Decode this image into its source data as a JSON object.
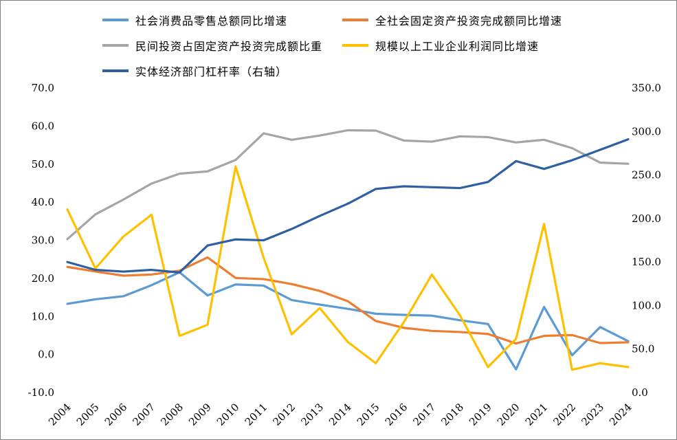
{
  "chart_data": {
    "type": "line",
    "title": "",
    "legend_position": "top",
    "grid": false,
    "x": [
      2004,
      2005,
      2006,
      2007,
      2008,
      2009,
      2010,
      2011,
      2012,
      2013,
      2014,
      2015,
      2016,
      2017,
      2018,
      2019,
      2020,
      2021,
      2022,
      2023,
      2024
    ],
    "left_axis": {
      "min": -10,
      "max": 70,
      "ticks": [
        70,
        60,
        50,
        40,
        30,
        20,
        10,
        0,
        -10
      ],
      "decimals": 1
    },
    "right_axis": {
      "min": 0,
      "max": 350,
      "ticks": [
        350,
        300,
        250,
        200,
        150,
        100,
        50,
        0
      ],
      "decimals": 1
    },
    "series": [
      {
        "name": "社会消费品零售总额同比增速",
        "color": "#5B9BD5",
        "axis": "left",
        "values": [
          13.3,
          14.5,
          15.3,
          18.2,
          21.6,
          15.5,
          18.4,
          18.1,
          14.3,
          13.1,
          12.0,
          10.7,
          10.4,
          10.2,
          9.0,
          8.0,
          -3.9,
          12.5,
          -0.2,
          7.2,
          3.5
        ]
      },
      {
        "name": "全社会固定资产投资完成额同比增速",
        "color": "#ED7D31",
        "axis": "left",
        "values": [
          23.0,
          21.8,
          20.7,
          21.0,
          22.0,
          25.5,
          20.1,
          19.8,
          18.5,
          16.7,
          14.0,
          8.8,
          7.0,
          6.2,
          5.9,
          5.4,
          2.9,
          4.9,
          5.1,
          3.0,
          3.2
        ]
      },
      {
        "name": "民间投资占固定资产投资完成额比重",
        "color": "#A5A5A5",
        "axis": "left",
        "values": [
          30.3,
          36.8,
          40.7,
          44.9,
          47.5,
          48.1,
          51.1,
          58.1,
          56.4,
          57.5,
          58.9,
          58.8,
          56.2,
          55.9,
          57.3,
          57.1,
          55.7,
          56.4,
          54.2,
          50.4,
          50.1
        ]
      },
      {
        "name": "规模以上工业企业利润同比增速",
        "color": "#FFC000",
        "axis": "left",
        "values": [
          38.1,
          22.6,
          31.0,
          36.7,
          4.9,
          7.8,
          49.4,
          25.4,
          5.3,
          12.2,
          3.3,
          -2.3,
          8.5,
          21.0,
          10.3,
          -3.3,
          4.1,
          34.3,
          -4.0,
          -2.3,
          -3.3
        ]
      },
      {
        "name": "实体经济部门杠杆率（右轴）",
        "color": "#2E5FA3",
        "axis": "right",
        "values": [
          150,
          141,
          139,
          141,
          138,
          169,
          176,
          175,
          188,
          203,
          217,
          234,
          237,
          236,
          235,
          242,
          266,
          257,
          267,
          279,
          291
        ]
      }
    ]
  }
}
